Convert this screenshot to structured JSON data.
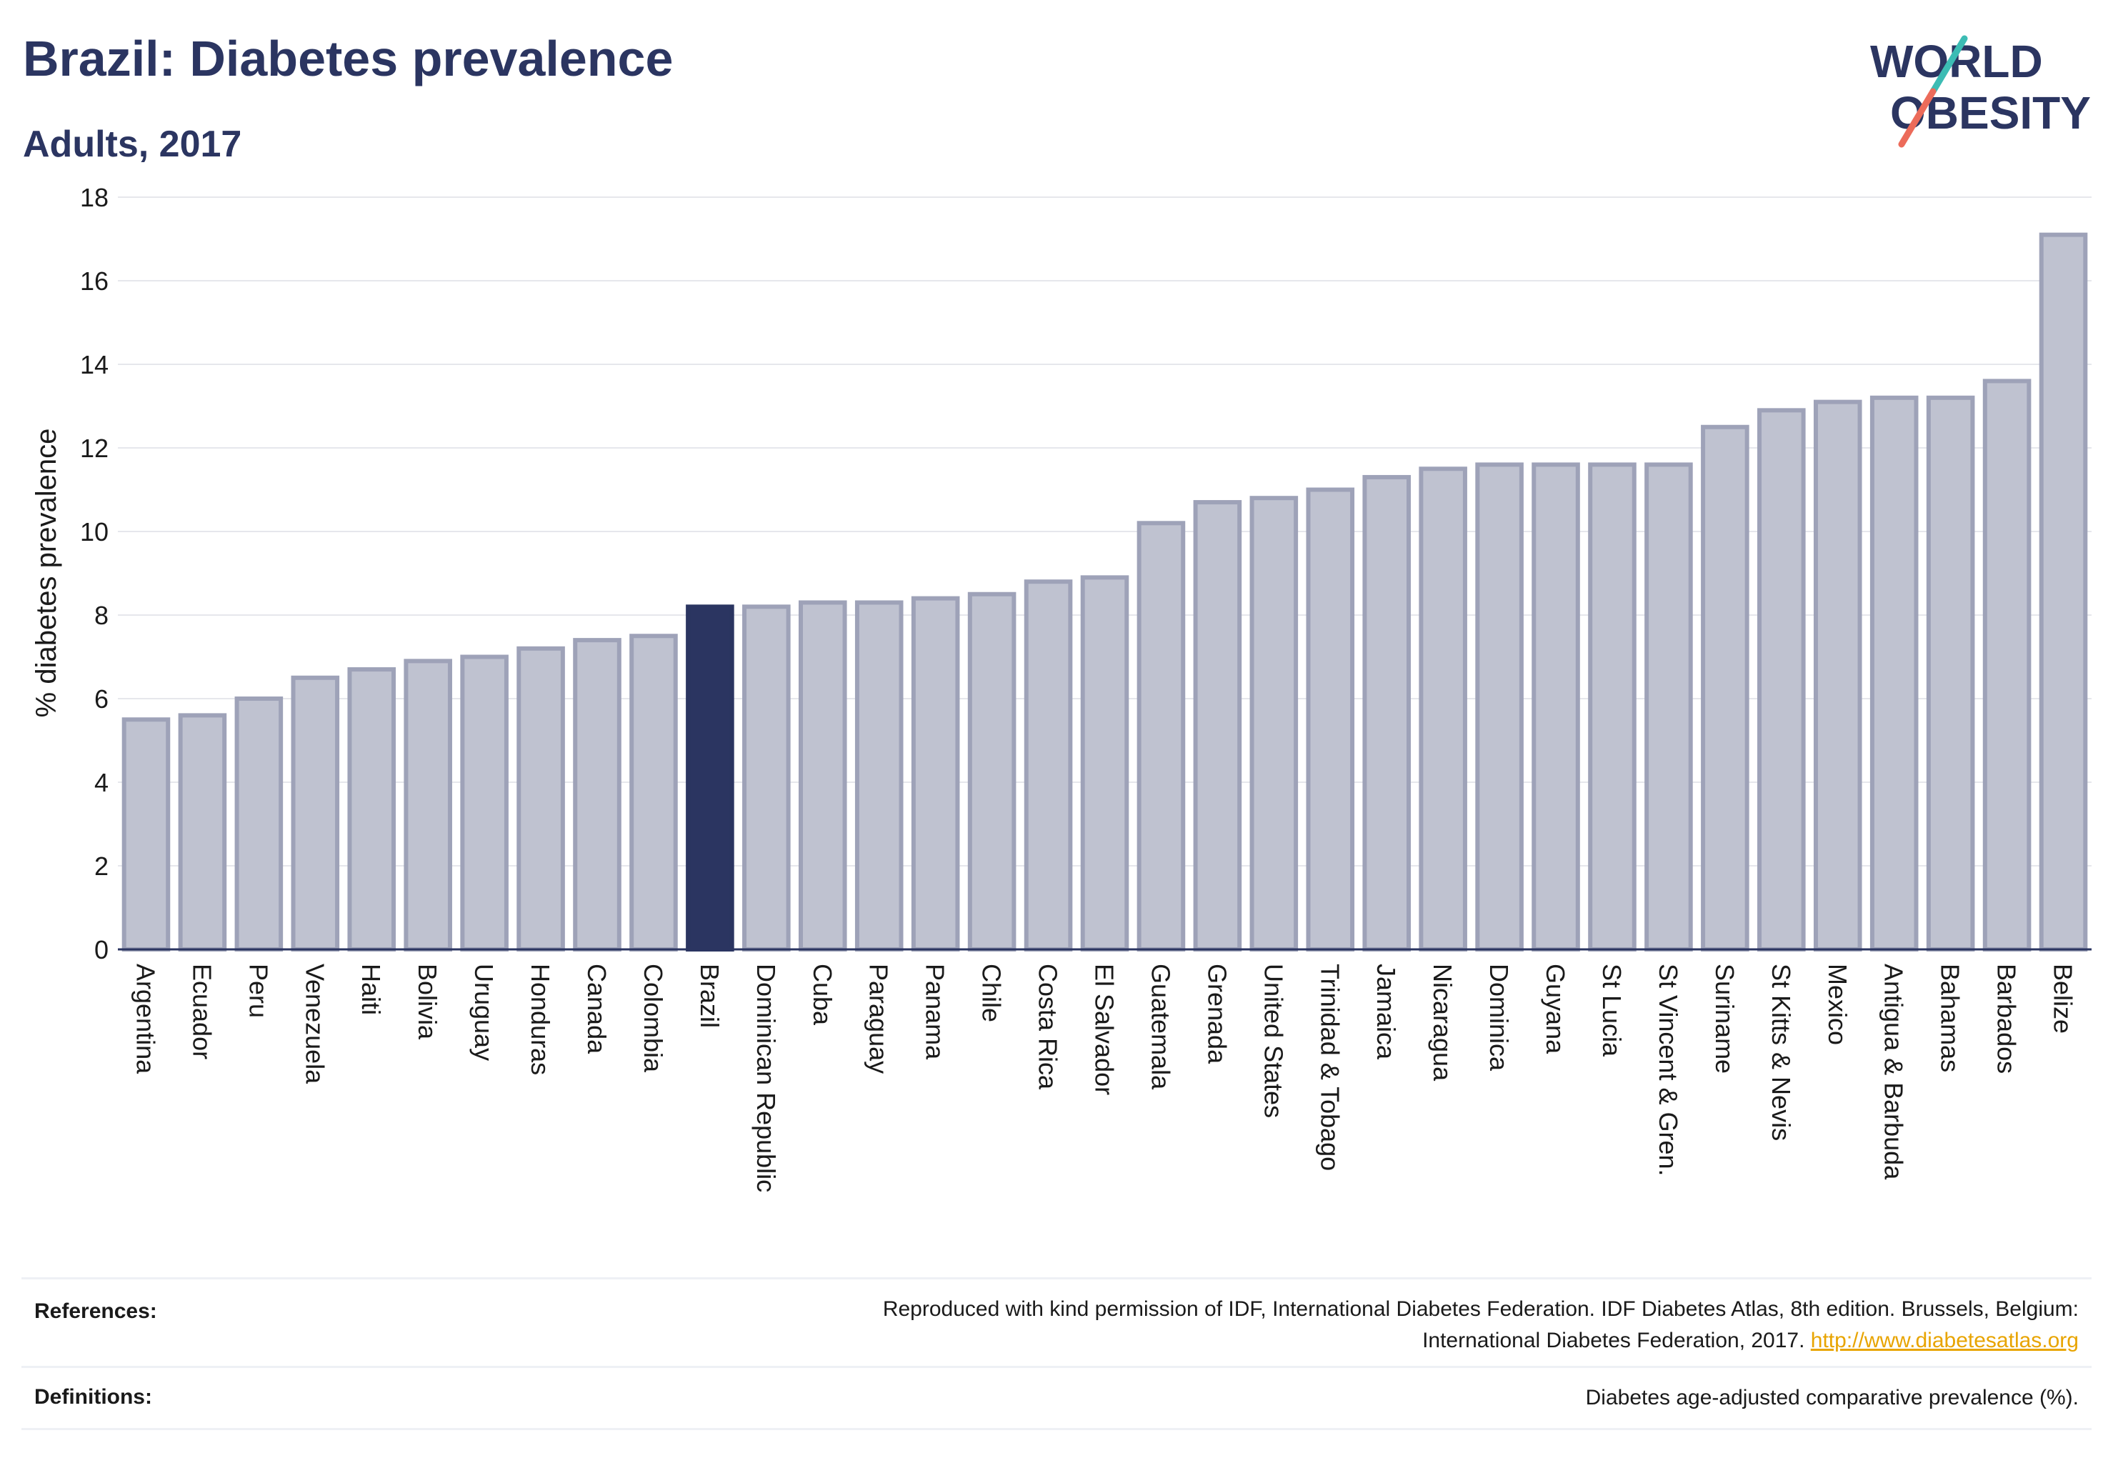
{
  "header": {
    "title": "Brazil: Diabetes prevalence",
    "subtitle": "Adults, 2017"
  },
  "logo": {
    "line1": "WORLD",
    "line2": "OBESITY"
  },
  "colors": {
    "highlight": "#2b3561",
    "bar_fill": "#bfc2d0",
    "bar_stroke": "#9ea2b8",
    "accent_teal": "#3cbcb4",
    "accent_coral": "#ec6b5a",
    "link": "#e8a400"
  },
  "chart_data": {
    "type": "bar",
    "title": "Brazil: Diabetes prevalence",
    "subtitle": "Adults, 2017",
    "xlabel": "",
    "ylabel": "% diabetes prevalence",
    "ylim": [
      0,
      18
    ],
    "yticks": [
      0,
      2,
      4,
      6,
      8,
      10,
      12,
      14,
      16,
      18
    ],
    "grid": true,
    "highlight": "Brazil",
    "categories": [
      "Argentina",
      "Ecuador",
      "Peru",
      "Venezuela",
      "Haiti",
      "Bolivia",
      "Uruguay",
      "Honduras",
      "Canada",
      "Colombia",
      "Brazil",
      "Dominican Republic",
      "Cuba",
      "Paraguay",
      "Panama",
      "Chile",
      "Costa Rica",
      "El Salvador",
      "Guatemala",
      "Grenada",
      "United States",
      "Trinidad & Tobago",
      "Jamaica",
      "Nicaragua",
      "Dominica",
      "Guyana",
      "St Lucia",
      "St Vincent & Gren.",
      "Suriname",
      "St Kitts & Nevis",
      "Mexico",
      "Antigua & Barbuda",
      "Bahamas",
      "Barbados",
      "Belize"
    ],
    "values": [
      5.5,
      5.6,
      6.0,
      6.5,
      6.7,
      6.9,
      7.0,
      7.2,
      7.4,
      7.5,
      8.2,
      8.2,
      8.3,
      8.3,
      8.4,
      8.5,
      8.8,
      8.9,
      10.2,
      10.7,
      10.8,
      11.0,
      11.3,
      11.5,
      11.6,
      11.6,
      11.6,
      11.6,
      12.5,
      12.9,
      13.1,
      13.2,
      13.2,
      13.6,
      17.1
    ]
  },
  "footer": {
    "references_label": "References:",
    "references_line1": "Reproduced with kind permission of IDF, International Diabetes Federation. IDF Diabetes Atlas, 8th edition. Brussels, Belgium:",
    "references_line2": "International Diabetes Federation, 2017.",
    "references_link": "http://www.diabetesatlas.org",
    "definitions_label": "Definitions:",
    "definitions_text": "Diabetes age-adjusted comparative prevalence (%)."
  }
}
